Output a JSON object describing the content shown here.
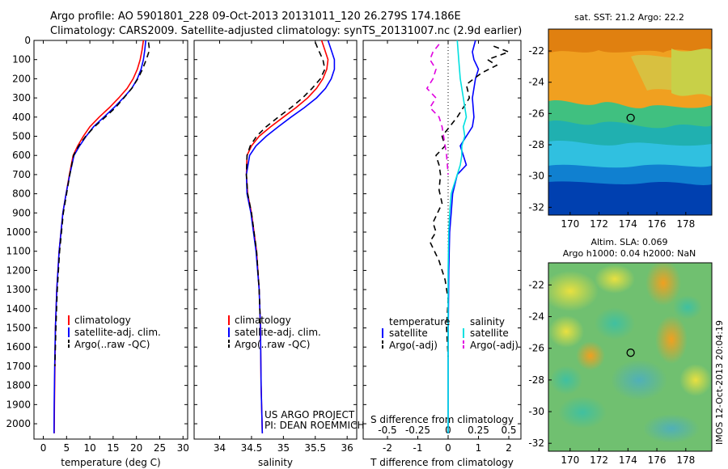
{
  "header": {
    "line1": "Argo profile: AO 5901801_228 09-Oct-2013 20131011_120 26.279S 174.186E",
    "line2": "Climatology: CARS2009. Satellite-adjusted climatology: synTS_20131007.nc (2.9d earlier)"
  },
  "colors": {
    "climatology": "#ff0000",
    "satellite": "#0000ff",
    "argo": "#000000",
    "cyan": "#00e0e0",
    "magenta": "#e000e0"
  },
  "chart_data": [
    {
      "type": "line",
      "id": "temperature",
      "xlabel": "temperature (deg C)",
      "ylabel": "",
      "xlim": [
        -2,
        31
      ],
      "ylim": [
        2080,
        0
      ],
      "xticks": [
        0,
        5,
        10,
        15,
        20,
        25,
        30
      ],
      "yticks": [
        0,
        100,
        200,
        300,
        400,
        500,
        600,
        700,
        800,
        900,
        1000,
        1100,
        1200,
        1300,
        1400,
        1500,
        1600,
        1700,
        1800,
        1900,
        2000
      ],
      "legend": [
        "climatology",
        "satellite-adj. clim.",
        "Argo(..raw -QC)"
      ],
      "series": [
        {
          "name": "climatology",
          "color": "#ff0000",
          "dash": "",
          "x": [
            21.5,
            21.2,
            20.8,
            20.2,
            19.3,
            18,
            16.2,
            14.2,
            12,
            10,
            8.6,
            7.4,
            6.4,
            5.6,
            4.9,
            4.2,
            3.4,
            2.9,
            2.6,
            2.5,
            2.4,
            2.35
          ],
          "y": [
            0,
            50,
            100,
            150,
            200,
            250,
            300,
            350,
            400,
            450,
            500,
            550,
            600,
            700,
            800,
            900,
            1100,
            1300,
            1500,
            1700,
            1900,
            2050
          ]
        },
        {
          "name": "satellite-adj. clim.",
          "color": "#0000ff",
          "dash": "",
          "x": [
            22,
            21.8,
            21.5,
            21,
            20.2,
            19,
            17.2,
            15.2,
            13,
            10.8,
            9.2,
            7.8,
            6.6,
            5.7,
            4.9,
            4.2,
            3.4,
            2.9,
            2.6,
            2.45,
            2.35,
            2.3
          ],
          "y": [
            0,
            50,
            100,
            150,
            200,
            250,
            300,
            350,
            400,
            450,
            500,
            550,
            600,
            700,
            800,
            900,
            1100,
            1300,
            1500,
            1700,
            1900,
            2050
          ]
        },
        {
          "name": "Argo(..raw -QC)",
          "color": "#000000",
          "dash": "7,5",
          "x": [
            22.6,
            22.8,
            22.1,
            21.3,
            20.3,
            19,
            17.3,
            15.5,
            13.3,
            11,
            9.1,
            7.6,
            6.5,
            5.7,
            5,
            4.3,
            3.5,
            3,
            2.7,
            2.5
          ],
          "y": [
            10,
            50,
            100,
            150,
            200,
            250,
            300,
            350,
            400,
            450,
            500,
            550,
            600,
            700,
            800,
            900,
            1100,
            1300,
            1500,
            1700
          ]
        }
      ]
    },
    {
      "type": "line",
      "id": "salinity",
      "xlabel": "salinity",
      "ylabel": "",
      "xlim": [
        33.6,
        36.15
      ],
      "ylim": [
        2080,
        0
      ],
      "xticks": [
        34,
        34.5,
        35,
        35.5,
        36
      ],
      "legend": [
        "climatology",
        "satellite-adj. clim.",
        "Argo(..raw -QC)"
      ],
      "annotations": [
        "US ARGO PROJECT",
        "PI: DEAN ROEMMICH"
      ],
      "series": [
        {
          "name": "climatology",
          "color": "#ff0000",
          "dash": "",
          "x": [
            35.6,
            35.65,
            35.7,
            35.68,
            35.62,
            35.52,
            35.38,
            35.2,
            35.0,
            34.8,
            34.62,
            34.5,
            34.43,
            34.42,
            34.44,
            34.5,
            34.58,
            34.62,
            34.64,
            34.65,
            34.67
          ],
          "y": [
            0,
            50,
            100,
            150,
            200,
            250,
            300,
            350,
            400,
            450,
            500,
            550,
            600,
            700,
            800,
            900,
            1100,
            1300,
            1500,
            1800,
            2050
          ]
        },
        {
          "name": "satellite-adj. clim.",
          "color": "#0000ff",
          "dash": "",
          "x": [
            35.7,
            35.75,
            35.8,
            35.8,
            35.75,
            35.66,
            35.52,
            35.33,
            35.12,
            34.92,
            34.73,
            34.57,
            34.47,
            34.42,
            34.43,
            34.49,
            34.57,
            34.62,
            34.64,
            34.65,
            34.67
          ],
          "y": [
            0,
            50,
            100,
            150,
            200,
            250,
            300,
            350,
            400,
            450,
            500,
            550,
            600,
            700,
            800,
            900,
            1100,
            1300,
            1500,
            1800,
            2050
          ]
        },
        {
          "name": "Argo(..raw -QC)",
          "color": "#000000",
          "dash": "7,5",
          "x": [
            35.5,
            35.55,
            35.62,
            35.65,
            35.58,
            35.45,
            35.3,
            35.12,
            34.92,
            34.73,
            34.58,
            34.48,
            34.43,
            34.42,
            34.44,
            34.5,
            34.58,
            34.62,
            34.64
          ],
          "y": [
            10,
            50,
            100,
            150,
            200,
            250,
            300,
            350,
            400,
            450,
            500,
            550,
            600,
            700,
            800,
            900,
            1100,
            1300,
            1500
          ]
        }
      ]
    },
    {
      "type": "line",
      "id": "difference",
      "xlabel": "T difference from climatology",
      "xlabel2": "S difference from climatology",
      "xlim": [
        -2.8,
        2.4
      ],
      "ylim": [
        2080,
        0
      ],
      "xticks": [
        -2,
        -1,
        0,
        1,
        2
      ],
      "xtick_labels": [
        "-2",
        "-1",
        "0",
        "1",
        "2"
      ],
      "xticks2": [
        -2,
        -1,
        0,
        1,
        2
      ],
      "xtick_labels2": [
        "-0.5",
        "-0.25",
        "0",
        "0.25",
        "0.5"
      ],
      "legend_temperature": {
        "title": "temperature",
        "items": [
          "satellite",
          "Argo(-adj)"
        ]
      },
      "legend_salinity": {
        "title": "salinity",
        "items": [
          "satellite",
          "Argo(-adj)"
        ]
      },
      "series": [
        {
          "name": "T satellite",
          "color": "#0000ff",
          "dash": "",
          "x": [
            0.9,
            0.8,
            0.85,
            1,
            0.9,
            0.8,
            0.85,
            0.8,
            0.6,
            0.4,
            0.5,
            0.6,
            0.3,
            0.15,
            0.1,
            0.05,
            0.02,
            0.01,
            0,
            0,
            0
          ],
          "y": [
            0,
            60,
            100,
            150,
            200,
            300,
            400,
            450,
            500,
            550,
            600,
            650,
            700,
            800,
            900,
            1000,
            1200,
            1400,
            1600,
            1800,
            2050
          ]
        },
        {
          "name": "T Argo(-adj)",
          "color": "#000000",
          "dash": "7,5",
          "x": [
            1.5,
            2.0,
            1.3,
            1.6,
            1.1,
            0.6,
            0.7,
            0.3,
            -0.2,
            -0.1,
            -0.4,
            -0.3,
            -0.25,
            -0.3,
            -0.2,
            -0.5,
            -0.4,
            -0.6,
            -0.3,
            -0.1,
            0,
            -0.05,
            0
          ],
          "y": [
            30,
            60,
            100,
            130,
            170,
            230,
            300,
            400,
            500,
            550,
            600,
            650,
            700,
            780,
            850,
            950,
            1000,
            1050,
            1150,
            1250,
            1350,
            1500,
            1650
          ]
        },
        {
          "name": "S satellite",
          "color": "#00e0e0",
          "dash": "",
          "x": [
            0.3,
            0.35,
            0.4,
            0.5,
            0.6,
            0.5,
            0.55,
            0.45,
            0.45,
            0.4,
            0.3,
            0.2,
            0.1,
            0.05,
            0.02,
            0,
            0,
            0
          ],
          "y": [
            0,
            100,
            200,
            300,
            400,
            450,
            500,
            550,
            600,
            650,
            700,
            750,
            800,
            900,
            1000,
            1200,
            1600,
            2050
          ]
        },
        {
          "name": "S Argo(-adj)",
          "color": "#e000e0",
          "dash": "7,5",
          "x": [
            -0.3,
            -0.5,
            -0.6,
            -0.4,
            -0.5,
            -0.7,
            -0.4,
            -0.6,
            -0.3,
            -0.2,
            -0.15,
            -0.1,
            -0.05,
            0
          ],
          "y": [
            20,
            60,
            100,
            150,
            200,
            250,
            300,
            350,
            400,
            450,
            500,
            550,
            600,
            700
          ]
        }
      ]
    },
    {
      "type": "heatmap",
      "id": "sst-map",
      "title": "sat. SST: 21.2 Argo: 22.2",
      "xlim": [
        168.5,
        179.8
      ],
      "ylim": [
        -32.5,
        -20.6
      ],
      "xticks": [
        170,
        172,
        174,
        176,
        178
      ],
      "yticks": [
        -22,
        -24,
        -26,
        -28,
        -30,
        -32
      ],
      "marker": {
        "lon": 174.186,
        "lat": -26.279
      }
    },
    {
      "type": "heatmap",
      "id": "sla-map",
      "title": "Altim. SLA: 0.069",
      "subtitle": "Argo h1000: 0.04 h2000: NaN",
      "xlim": [
        168.5,
        179.8
      ],
      "ylim": [
        -32.5,
        -20.6
      ],
      "xticks": [
        170,
        172,
        174,
        176,
        178
      ],
      "yticks": [
        -22,
        -24,
        -26,
        -28,
        -30,
        -32
      ],
      "marker": {
        "lon": 174.186,
        "lat": -26.279
      }
    }
  ],
  "side_text": "IMOS 12-Oct-2013 20:04:19"
}
